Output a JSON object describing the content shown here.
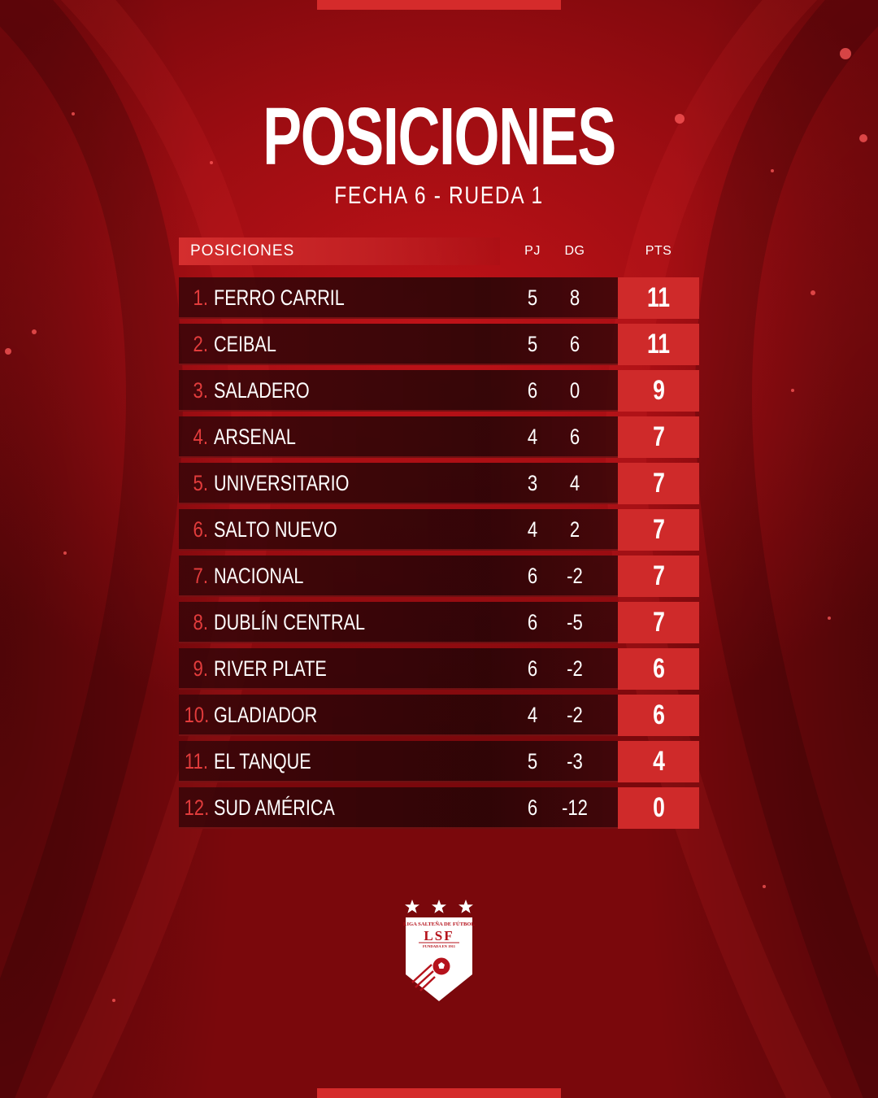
{
  "header": {
    "title": "POSICIONES",
    "subtitle": "FECHA 6 - RUEDA 1"
  },
  "table": {
    "headers": {
      "label": "POSICIONES",
      "pj": "PJ",
      "dg": "DG",
      "pts": "PTS"
    },
    "rows": [
      {
        "pos": "1.",
        "team": "FERRO CARRIL",
        "pj": "5",
        "dg": "8",
        "pts": "11"
      },
      {
        "pos": "2.",
        "team": "CEIBAL",
        "pj": "5",
        "dg": "6",
        "pts": "11"
      },
      {
        "pos": "3.",
        "team": "SALADERO",
        "pj": "6",
        "dg": "0",
        "pts": "9"
      },
      {
        "pos": "4.",
        "team": "ARSENAL",
        "pj": "4",
        "dg": "6",
        "pts": "7"
      },
      {
        "pos": "5.",
        "team": "UNIVERSITARIO",
        "pj": "3",
        "dg": "4",
        "pts": "7"
      },
      {
        "pos": "6.",
        "team": "SALTO NUEVO",
        "pj": "4",
        "dg": "2",
        "pts": "7"
      },
      {
        "pos": "7.",
        "team": "NACIONAL",
        "pj": "6",
        "dg": "-2",
        "pts": "7"
      },
      {
        "pos": "8.",
        "team": "DUBLÍN CENTRAL",
        "pj": "6",
        "dg": "-5",
        "pts": "7"
      },
      {
        "pos": "9.",
        "team": "RIVER PLATE",
        "pj": "6",
        "dg": "-2",
        "pts": "6"
      },
      {
        "pos": "10.",
        "team": "GLADIADOR",
        "pj": "4",
        "dg": "-2",
        "pts": "6"
      },
      {
        "pos": "11.",
        "team": "EL TANQUE",
        "pj": "5",
        "dg": "-3",
        "pts": "4"
      },
      {
        "pos": "12.",
        "team": "SUD AMÉRICA",
        "pj": "6",
        "dg": "-12",
        "pts": "0"
      }
    ]
  },
  "logo": {
    "name": "LIGA SALTEÑA DE FÚTBOL",
    "abbr": "LSF",
    "founded": "FUNDADA EN 1911",
    "stars": 3
  },
  "colors": {
    "accent": "#cf2a2a",
    "position_number": "#e23c3c",
    "background": "#9e0d12"
  }
}
